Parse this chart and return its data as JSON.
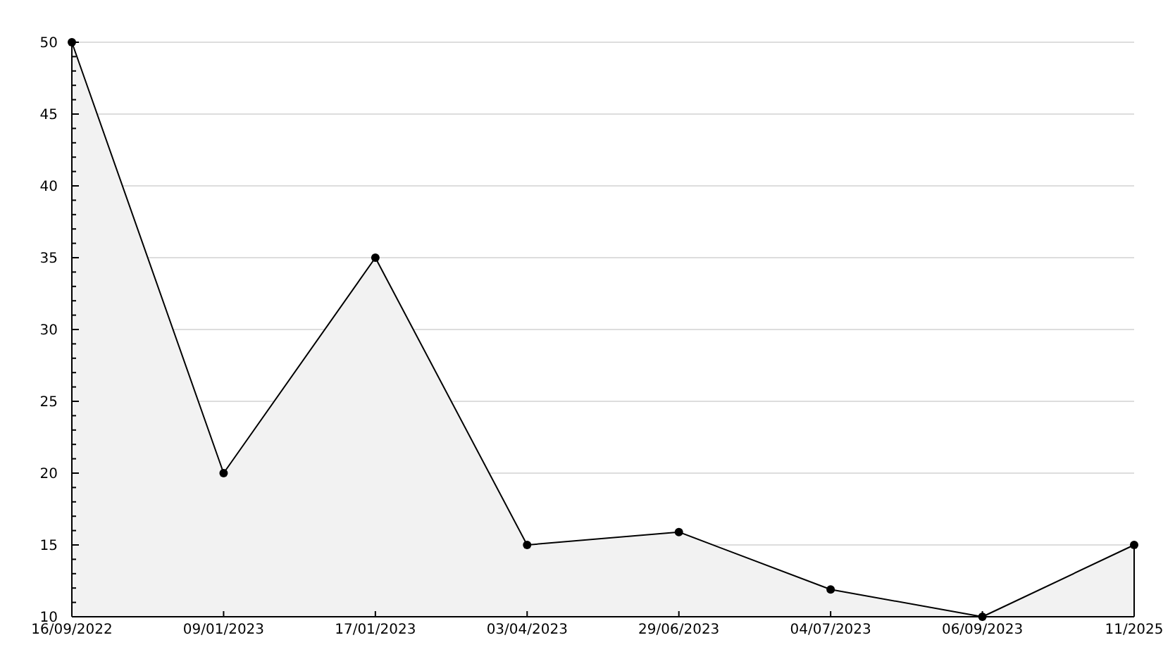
{
  "chart_data": {
    "type": "area",
    "categories": [
      "16/09/2022",
      "09/01/2023",
      "17/01/2023",
      "03/04/2023",
      "29/06/2023",
      "04/07/2023",
      "06/09/2023",
      "11/2025"
    ],
    "series": [
      {
        "color": "#000000",
        "values": [
          50,
          20,
          35,
          15,
          15.9,
          11.9,
          10,
          15
        ]
      }
    ],
    "ylim": [
      10,
      50
    ],
    "yticks": [
      10,
      {
        "value": 11,
        "label": null
      },
      {
        "value": 12,
        "label": null
      },
      {
        "value": 13,
        "label": null
      },
      {
        "value": 14,
        "label": null
      },
      15,
      {
        "value": 16,
        "label": null
      },
      {
        "value": 17,
        "label": null
      },
      {
        "value": 18,
        "label": null
      },
      {
        "value": 19,
        "label": null
      },
      20,
      {
        "value": 21,
        "label": null
      },
      {
        "value": 22,
        "label": null
      },
      {
        "value": 23,
        "label": null
      },
      {
        "value": 24,
        "label": null
      },
      25,
      {
        "value": 26,
        "label": null
      },
      {
        "value": 27,
        "label": null
      },
      {
        "value": 28,
        "label": null
      },
      {
        "value": 29,
        "label": null
      },
      30,
      {
        "value": 31,
        "label": null
      },
      {
        "value": 32,
        "label": null
      },
      {
        "value": 33,
        "label": null
      },
      {
        "value": 34,
        "label": null
      },
      35,
      {
        "value": 36,
        "label": null
      },
      {
        "value": 37,
        "label": null
      },
      {
        "value": 38,
        "label": null
      },
      {
        "value": 39,
        "label": null
      },
      40,
      {
        "value": 41,
        "label": null
      },
      {
        "value": 42,
        "label": null
      },
      {
        "value": 43,
        "label": null
      },
      {
        "value": 44,
        "label": null
      },
      45,
      {
        "value": 46,
        "label": null
      },
      {
        "value": 47,
        "label": null
      },
      {
        "value": 48,
        "label": null
      },
      {
        "value": 49,
        "label": null
      },
      50
    ],
    "grid": "y",
    "marker": "circle"
  }
}
